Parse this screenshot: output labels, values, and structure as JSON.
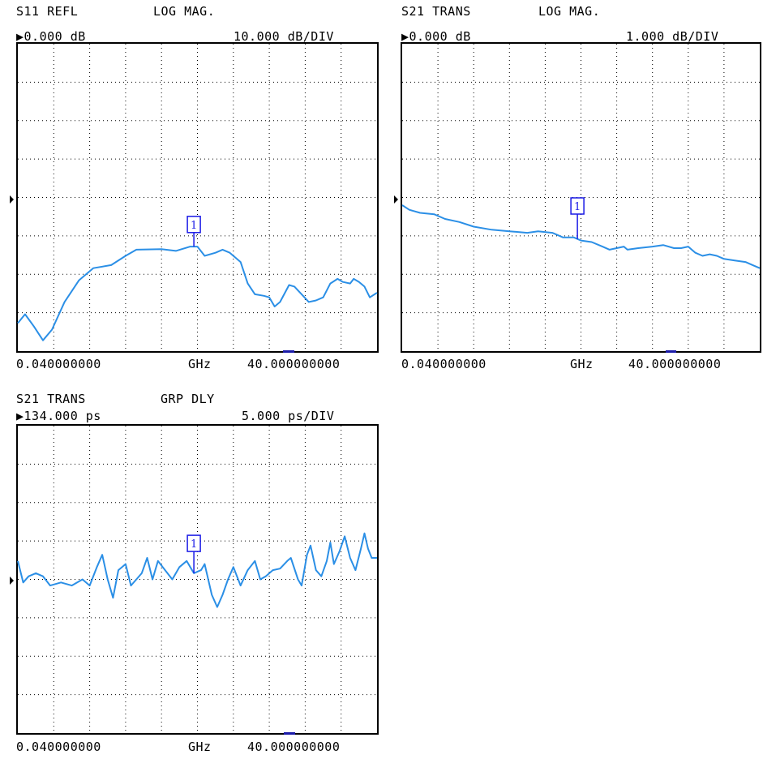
{
  "panels": [
    {
      "id": "s11",
      "title": "S11 REFL",
      "format": "LOG MAG.",
      "ref_value": "▶0.000 dB",
      "scale": "10.000 dB/DIV",
      "start_label": "0.040000000",
      "unit_label": "GHz",
      "stop_label": "40.000000000",
      "marker_label": "1",
      "trace_color": "#2b8fe6",
      "marker_color": "#1a1ae6"
    },
    {
      "id": "s21mag",
      "title": "S21 TRANS",
      "format": "LOG MAG.",
      "ref_value": "▶0.000 dB",
      "scale": "1.000 dB/DIV",
      "start_label": "0.040000000",
      "unit_label": "GHz",
      "stop_label": "40.000000000",
      "marker_label": "1",
      "trace_color": "#2b8fe6",
      "marker_color": "#1a1ae6"
    },
    {
      "id": "s21gd",
      "title": "S21 TRANS",
      "format": "GRP DLY",
      "ref_value": "▶134.000 ps",
      "scale": "5.000 ps/DIV",
      "start_label": "0.040000000",
      "unit_label": "GHz",
      "stop_label": "40.000000000",
      "marker_label": "1",
      "trace_color": "#2b8fe6",
      "marker_color": "#1a1ae6"
    }
  ]
}
